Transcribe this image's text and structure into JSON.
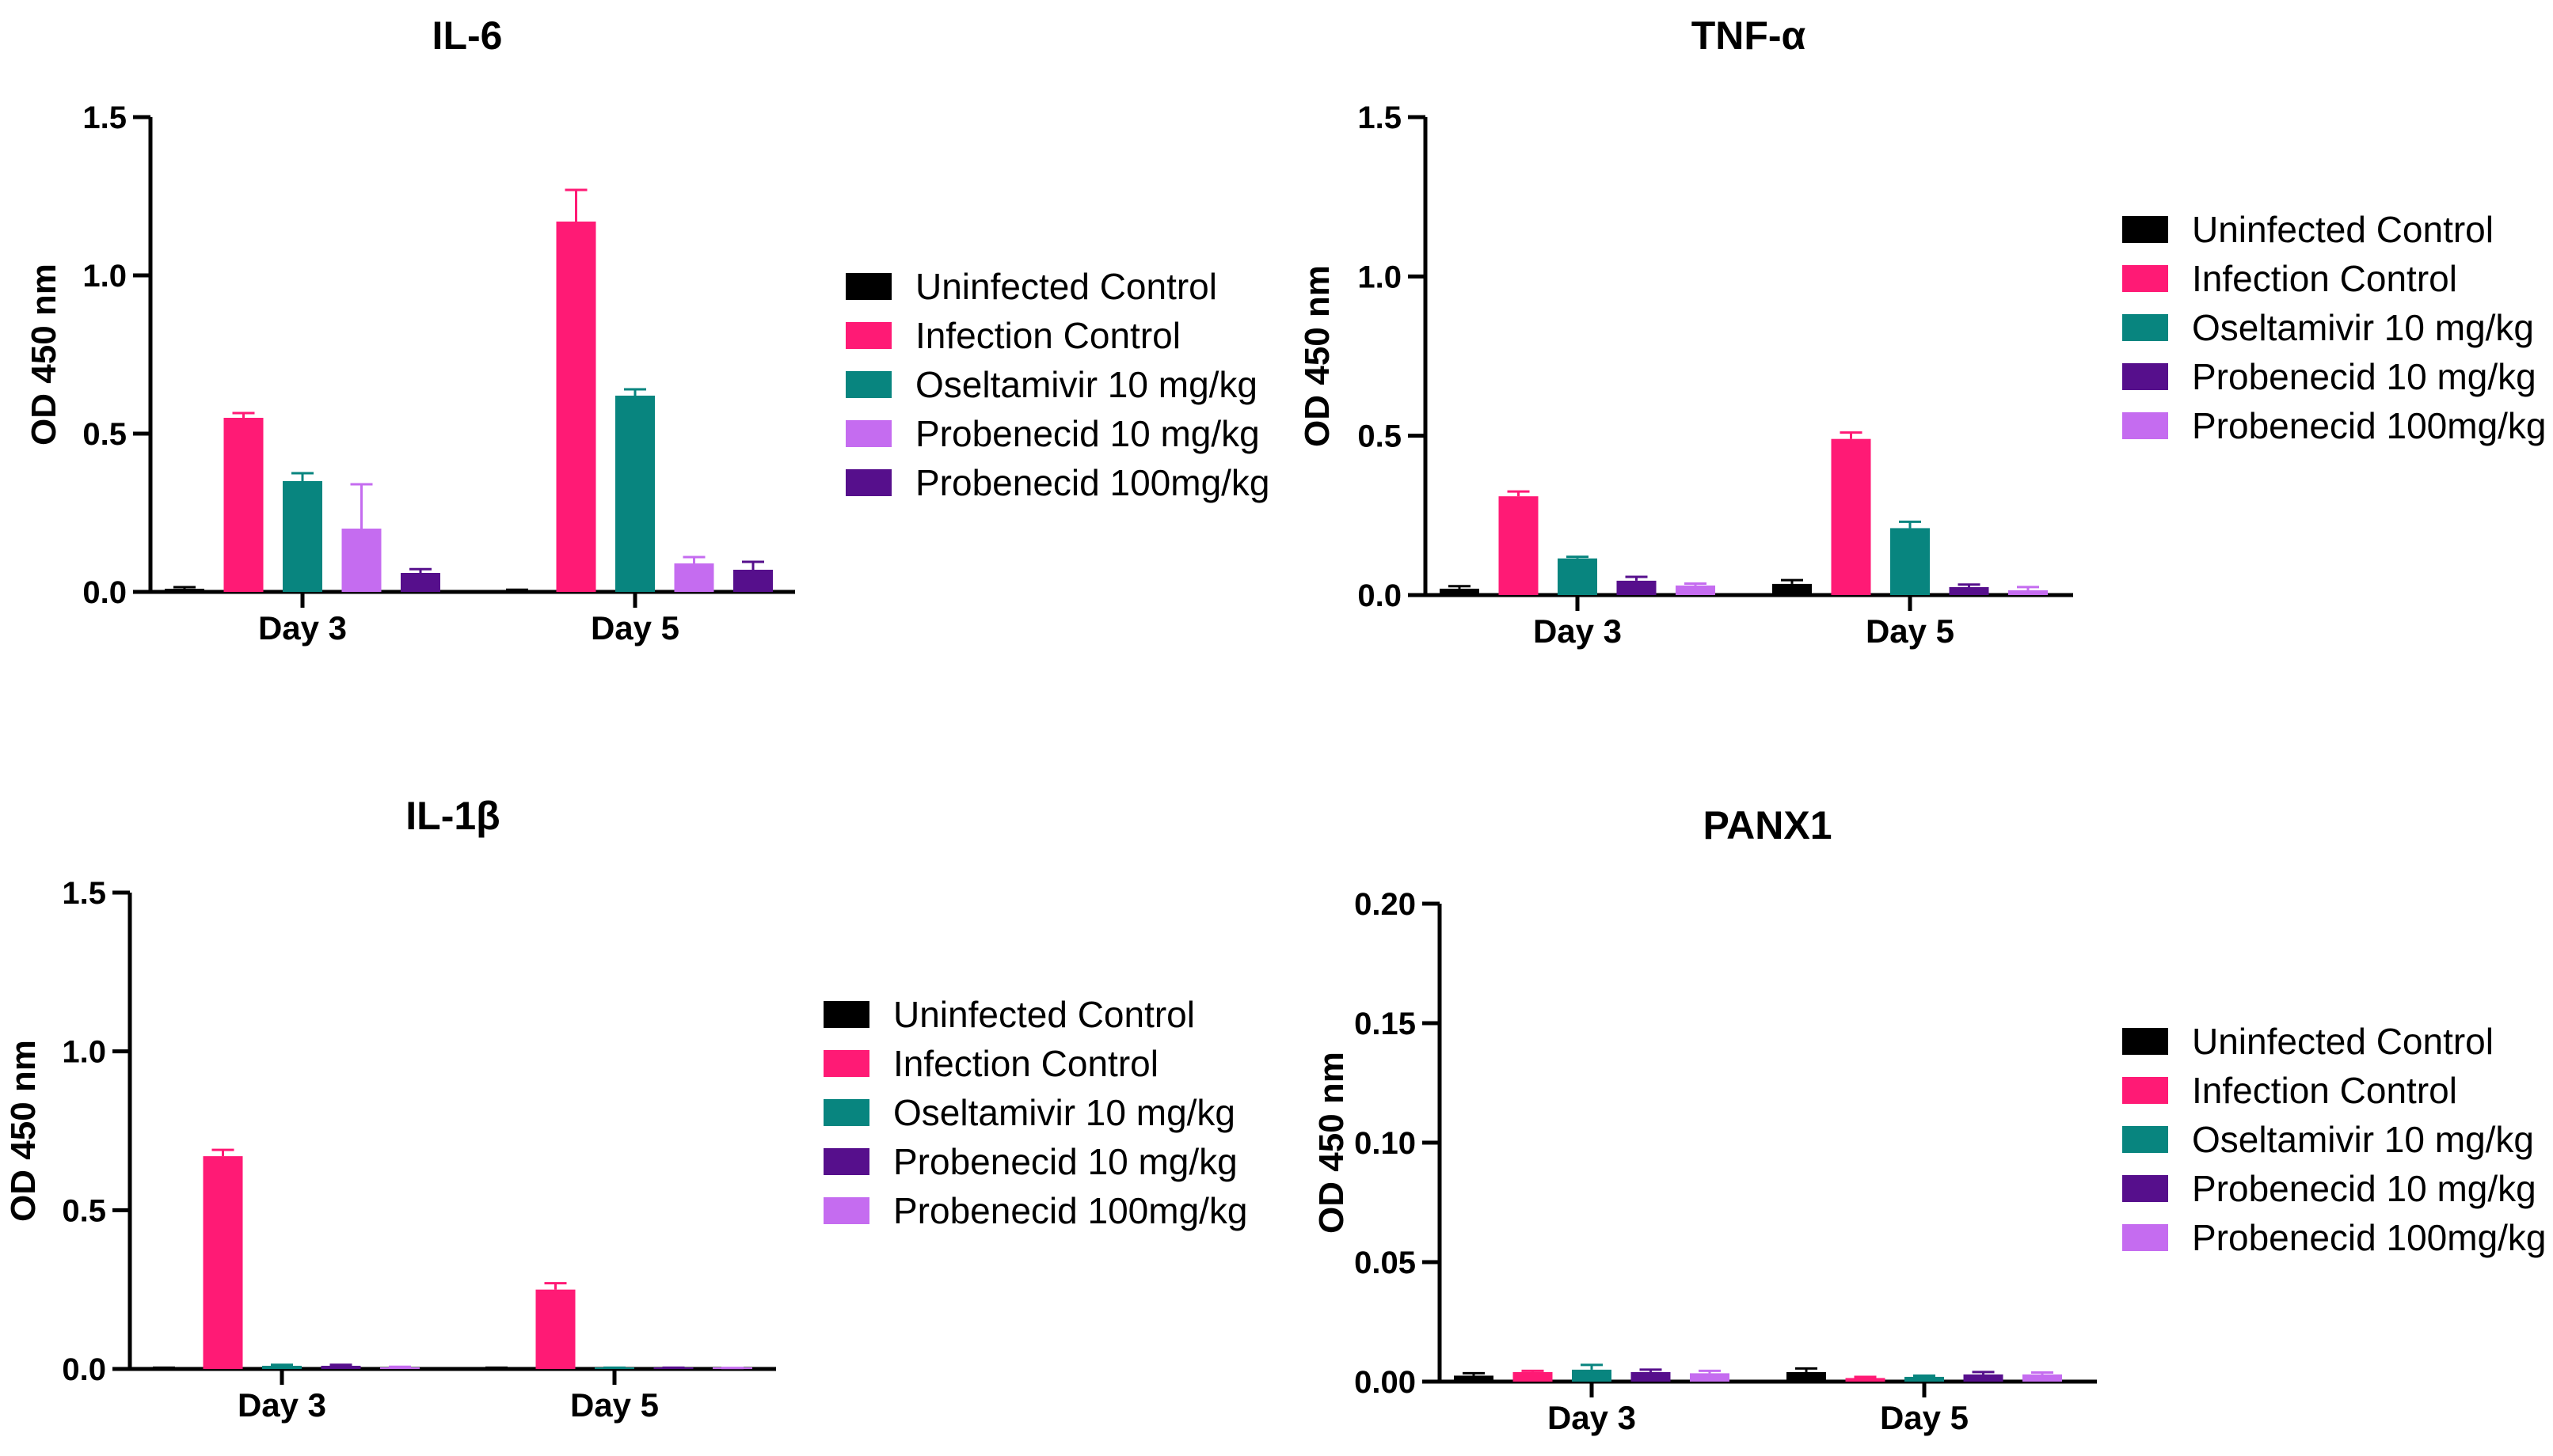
{
  "colors": {
    "black": "#000000",
    "pink": "#ff1a75",
    "teal": "#08857f",
    "lavender": "#c56cf0",
    "purple": "#560f8c"
  },
  "chart_data": [
    {
      "type": "bar",
      "title": "IL-6",
      "xlabel": "",
      "ylabel": "OD 450 nm",
      "ylim": [
        0,
        1.5
      ],
      "yticks": [
        "0.0",
        "0.5",
        "1.0",
        "1.5"
      ],
      "legend_position": "right",
      "categories": [
        "Day 3",
        "Day 5"
      ],
      "series": [
        {
          "name": "Uninfected Control",
          "color": "#000000",
          "values": [
            0.01,
            0.005
          ],
          "errors": [
            0.005,
            0.002
          ]
        },
        {
          "name": "Infection Control",
          "color": "#ff1a75",
          "values": [
            0.55,
            1.17
          ],
          "errors": [
            0.015,
            0.1
          ]
        },
        {
          "name": "Oseltamivir 10 mg/kg",
          "color": "#08857f",
          "values": [
            0.35,
            0.62
          ],
          "errors": [
            0.025,
            0.02
          ]
        },
        {
          "name": "Probenecid 10 mg/kg",
          "color": "#c56cf0",
          "values": [
            0.2,
            0.09
          ],
          "errors": [
            0.14,
            0.02
          ]
        },
        {
          "name": "Probenecid 100mg/kg",
          "color": "#560f8c",
          "values": [
            0.06,
            0.07
          ],
          "errors": [
            0.012,
            0.025
          ]
        }
      ]
    },
    {
      "type": "bar",
      "title": "TNF-α",
      "xlabel": "",
      "ylabel": "OD 450 nm",
      "ylim": [
        0,
        1.5
      ],
      "yticks": [
        "0.0",
        "0.5",
        "1.0",
        "1.5"
      ],
      "legend_position": "right",
      "categories": [
        "Day 3",
        "Day 5"
      ],
      "series": [
        {
          "name": "Uninfected Control",
          "color": "#000000",
          "values": [
            0.02,
            0.035
          ],
          "errors": [
            0.008,
            0.012
          ]
        },
        {
          "name": "Infection Control",
          "color": "#ff1a75",
          "values": [
            0.31,
            0.49
          ],
          "errors": [
            0.015,
            0.02
          ]
        },
        {
          "name": "Oseltamivir 10 mg/kg",
          "color": "#08857f",
          "values": [
            0.115,
            0.21
          ],
          "errors": [
            0.005,
            0.02
          ]
        },
        {
          "name": "Probenecid 10 mg/kg",
          "color": "#560f8c",
          "values": [
            0.045,
            0.025
          ],
          "errors": [
            0.012,
            0.008
          ]
        },
        {
          "name": "Probenecid 100mg/kg",
          "color": "#c56cf0",
          "values": [
            0.03,
            0.015
          ],
          "errors": [
            0.006,
            0.01
          ]
        }
      ]
    },
    {
      "type": "bar",
      "title": "IL-1β",
      "xlabel": "",
      "ylabel": "OD 450 nm",
      "ylim": [
        0,
        1.5
      ],
      "yticks": [
        "0.0",
        "0.5",
        "1.0",
        "1.5"
      ],
      "legend_position": "right",
      "categories": [
        "Day 3",
        "Day 5"
      ],
      "series": [
        {
          "name": "Uninfected Control",
          "color": "#000000",
          "values": [
            0.003,
            0.003
          ],
          "errors": [
            0.001,
            0.001
          ]
        },
        {
          "name": "Infection Control",
          "color": "#ff1a75",
          "values": [
            0.67,
            0.25
          ],
          "errors": [
            0.02,
            0.02
          ]
        },
        {
          "name": "Oseltamivir 10 mg/kg",
          "color": "#08857f",
          "values": [
            0.01,
            0.003
          ],
          "errors": [
            0.003,
            0.001
          ]
        },
        {
          "name": "Probenecid 10 mg/kg",
          "color": "#560f8c",
          "values": [
            0.01,
            0.003
          ],
          "errors": [
            0.003,
            0.001
          ]
        },
        {
          "name": "Probenecid 100mg/kg",
          "color": "#c56cf0",
          "values": [
            0.005,
            0.002
          ],
          "errors": [
            0.002,
            0.001
          ]
        }
      ]
    },
    {
      "type": "bar",
      "title": "PANX1",
      "xlabel": "",
      "ylabel": "OD 450 nm",
      "ylim": [
        0,
        0.2
      ],
      "yticks": [
        "0.00",
        "0.05",
        "0.10",
        "0.15",
        "0.20"
      ],
      "legend_position": "right",
      "categories": [
        "Day 3",
        "Day 5"
      ],
      "series": [
        {
          "name": "Uninfected Control",
          "color": "#000000",
          "values": [
            0.0025,
            0.004
          ],
          "errors": [
            0.001,
            0.0015
          ]
        },
        {
          "name": "Infection Control",
          "color": "#ff1a75",
          "values": [
            0.004,
            0.0015
          ],
          "errors": [
            0.0005,
            0.0005
          ]
        },
        {
          "name": "Oseltamivir 10 mg/kg",
          "color": "#08857f",
          "values": [
            0.005,
            0.002
          ],
          "errors": [
            0.002,
            0.0005
          ]
        },
        {
          "name": "Probenecid 10 mg/kg",
          "color": "#560f8c",
          "values": [
            0.004,
            0.003
          ],
          "errors": [
            0.001,
            0.001
          ]
        },
        {
          "name": "Probenecid 100mg/kg",
          "color": "#c56cf0",
          "values": [
            0.0035,
            0.003
          ],
          "errors": [
            0.001,
            0.0008
          ]
        }
      ]
    }
  ]
}
